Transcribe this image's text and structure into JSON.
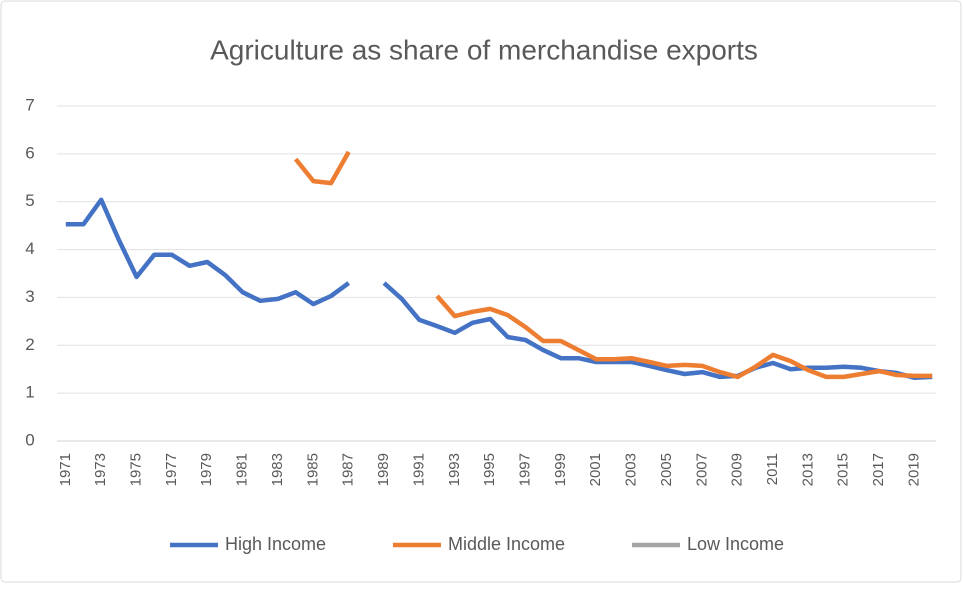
{
  "chart_data": {
    "type": "line",
    "title": "Agriculture as share of merchandise exports",
    "categories": [
      "1971",
      null,
      "1973",
      null,
      "1975",
      null,
      "1977",
      null,
      "1979",
      null,
      "1981",
      null,
      "1983",
      null,
      "1985",
      null,
      "1987",
      null,
      "1989",
      null,
      "1991",
      null,
      "1993",
      null,
      "1995",
      null,
      "1997",
      null,
      "1999",
      null,
      "2001",
      null,
      "2003",
      null,
      "2005",
      null,
      "2007",
      null,
      "2009",
      null,
      "2011",
      null,
      "2013",
      null,
      "2015",
      null,
      "2017",
      null,
      "2019",
      null
    ],
    "series": [
      {
        "name": "High Income",
        "color": "#4472c4",
        "values": [
          4.53,
          4.53,
          5.04,
          4.2,
          3.43,
          3.89,
          3.89,
          3.66,
          3.74,
          3.47,
          3.11,
          2.93,
          2.97,
          3.11,
          2.86,
          3.03,
          3.3,
          null,
          3.3,
          2.97,
          2.53,
          2.4,
          2.26,
          2.47,
          2.55,
          2.17,
          2.11,
          1.9,
          1.73,
          1.73,
          1.65,
          1.65,
          1.65,
          1.57,
          1.48,
          1.4,
          1.44,
          1.34,
          1.36,
          1.53,
          1.63,
          1.5,
          1.53,
          1.53,
          1.55,
          1.53,
          1.46,
          1.42,
          1.32,
          1.34
        ]
      },
      {
        "name": "Middle Income",
        "color": "#ed7d31",
        "values": [
          null,
          null,
          null,
          null,
          null,
          null,
          null,
          null,
          null,
          null,
          null,
          null,
          null,
          5.89,
          5.43,
          5.39,
          6.04,
          null,
          null,
          null,
          null,
          3.03,
          2.61,
          2.7,
          2.76,
          2.63,
          2.38,
          2.09,
          2.09,
          1.9,
          1.71,
          1.71,
          1.73,
          1.65,
          1.57,
          1.59,
          1.57,
          1.44,
          1.34,
          1.55,
          1.8,
          1.67,
          1.48,
          1.34,
          1.34,
          1.4,
          1.46,
          1.38,
          1.36,
          1.36
        ]
      },
      {
        "name": "Low Income",
        "color": "#a5a5a5",
        "values": [
          null,
          null,
          null,
          null,
          null,
          null,
          null,
          null,
          null,
          null,
          null,
          null,
          null,
          null,
          null,
          null,
          null,
          null,
          null,
          null,
          null,
          null,
          null,
          null,
          null,
          null,
          null,
          null,
          null,
          null,
          null,
          null,
          null,
          null,
          null,
          null,
          null,
          null,
          null,
          null,
          null,
          null,
          null,
          null,
          null,
          null,
          null,
          null,
          null,
          null
        ]
      }
    ],
    "ylim": [
      0,
      7
    ],
    "yticks": [
      0,
      1,
      2,
      3,
      4,
      5,
      6,
      7
    ],
    "grid": true,
    "legend": "bottom"
  }
}
